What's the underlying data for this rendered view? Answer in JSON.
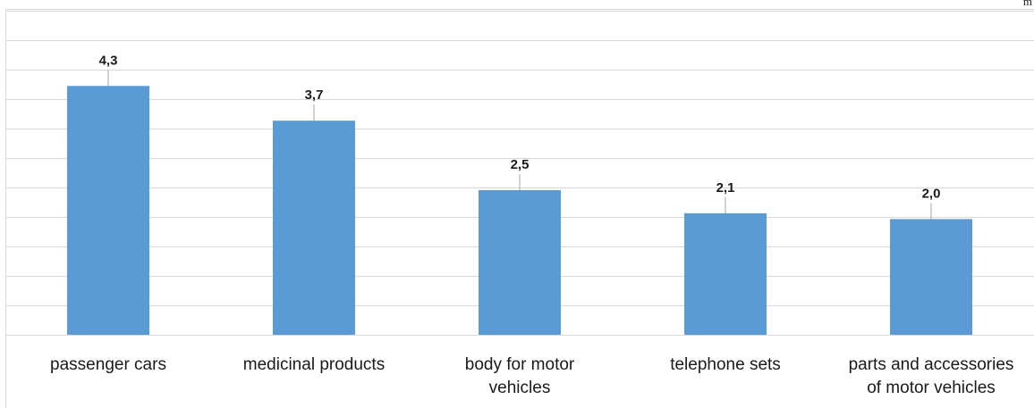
{
  "chart_data": {
    "type": "bar",
    "unit_label": "m",
    "categories": [
      [
        "passenger cars"
      ],
      [
        "medicinal products"
      ],
      [
        "body for motor",
        "vehicles"
      ],
      [
        "telephone sets"
      ],
      [
        "parts and accessories",
        "of motor vehicles"
      ]
    ],
    "values": [
      4.3,
      3.7,
      2.5,
      2.1,
      2.0
    ],
    "value_labels": [
      "4,3",
      "3,7",
      "2,5",
      "2,1",
      "2,0"
    ],
    "ylim": [
      0,
      5.6
    ],
    "grid": true,
    "colors": {
      "bar": "#5b9bd5",
      "grid": "#d9d9d9",
      "leader": "#a6a6a6",
      "frame": "#d9d9d9"
    }
  }
}
